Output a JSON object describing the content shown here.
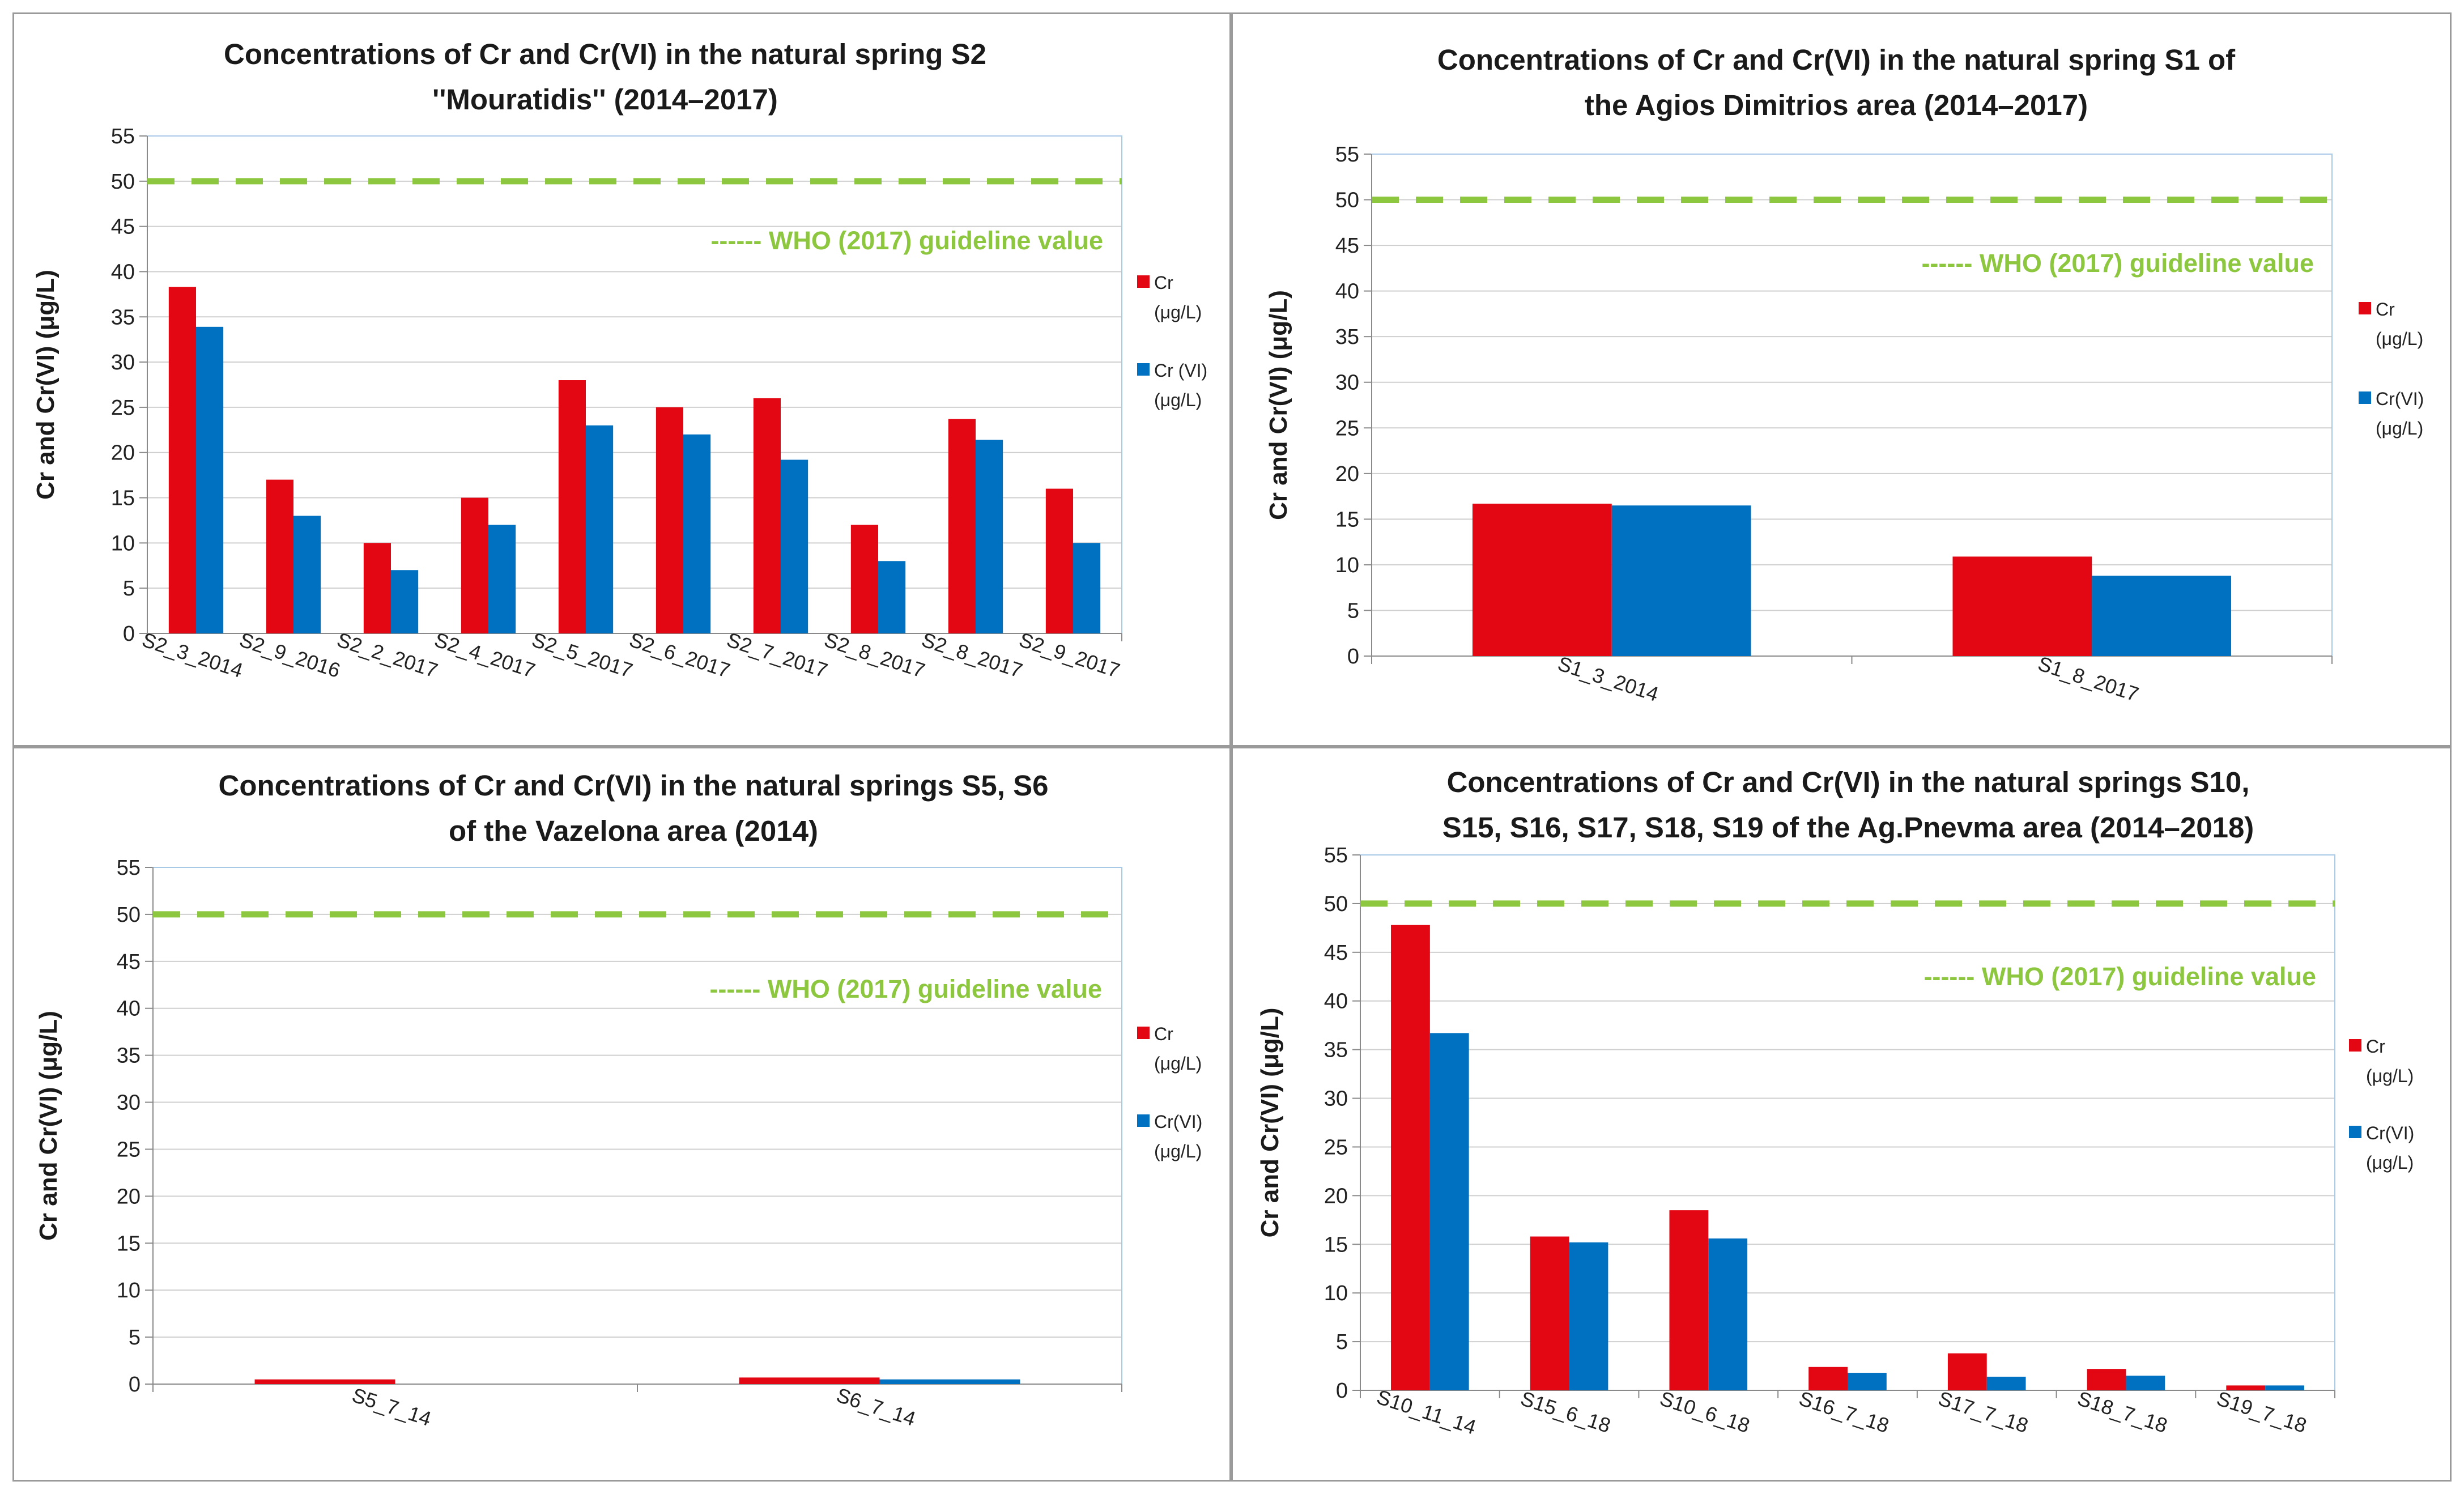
{
  "colors": {
    "cr": "#e30613",
    "crvi": "#0070c0",
    "who": "#8dc63f",
    "grid": "#cfcfcf",
    "frame": "#a8c8e8"
  },
  "chart_data": [
    {
      "type": "bar",
      "title": [
        "Concentrations  of  Cr and Cr(VI)  in the natural spring  S2",
        "''Mouratidis''  (2014–2017)"
      ],
      "ylabel": "Cr and Cr(VI) (μg/L)",
      "ylim": [
        0,
        55
      ],
      "yticks": [
        0,
        5,
        10,
        15,
        20,
        25,
        30,
        35,
        40,
        45,
        50,
        55
      ],
      "categories": [
        "S2_3_2014",
        "S2_9_2016",
        "S2_2_2017",
        "S2_4_2017",
        "S2_5_2017",
        "S2_6_2017",
        "S2_7_2017",
        "S2_8_2017",
        "S2_8_2017",
        "S2_9_2017"
      ],
      "series": [
        {
          "name": "Cr",
          "unit": "(μg/L)",
          "values": [
            38.3,
            17,
            10,
            15,
            28,
            25,
            26,
            12,
            23.7,
            16
          ]
        },
        {
          "name": "Cr (VI)",
          "unit": "(μg/L)",
          "values": [
            33.9,
            13,
            7,
            12,
            23,
            22,
            19.2,
            8,
            21.4,
            10
          ]
        }
      ],
      "guideline": {
        "value": 50,
        "label": "------ WHO (2017) guideline value"
      }
    },
    {
      "type": "bar",
      "title": [
        "Concentrations of Cr and Cr(VI)  in the natural spring  S1 of",
        "the Agios Dimitrios area (2014–2017)"
      ],
      "ylabel": "Cr and Cr(VI) (μg/L)",
      "ylim": [
        0,
        55
      ],
      "yticks": [
        0,
        5,
        10,
        15,
        20,
        25,
        30,
        35,
        40,
        45,
        50,
        55
      ],
      "categories": [
        "S1_3_2014",
        "S1_8_2017"
      ],
      "series": [
        {
          "name": "Cr",
          "unit": "(μg/L)",
          "values": [
            16.7,
            10.9
          ]
        },
        {
          "name": "Cr(VI)",
          "unit": "(μg/L)",
          "values": [
            16.5,
            8.8
          ]
        }
      ],
      "guideline": {
        "value": 50,
        "label": "------ WHO (2017) guideline value"
      }
    },
    {
      "type": "bar",
      "title": [
        "Concentrations of Cr and Cr(VI)  in the  natural springs S5, S6",
        "of the Vazelona area (2014)"
      ],
      "ylabel": "Cr and Cr(VI) (μg/L)",
      "ylim": [
        0,
        55
      ],
      "yticks": [
        0,
        5,
        10,
        15,
        20,
        25,
        30,
        35,
        40,
        45,
        50,
        55
      ],
      "categories": [
        "S5_7_14",
        "S6_7_14"
      ],
      "series": [
        {
          "name": "Cr",
          "unit": "(μg/L)",
          "values": [
            0.5,
            0.7
          ]
        },
        {
          "name": "Cr(VI)",
          "unit": "(μg/L)",
          "values": [
            0,
            0.5
          ]
        }
      ],
      "guideline": {
        "value": 50,
        "label": "------ WHO (2017) guideline value"
      }
    },
    {
      "type": "bar",
      "title": [
        "Concentrations  of Cr and Cr(VI)  in the natural springs S10,",
        "S15, S16, S17, S18, S19 of  the Ag.Pnevma area  (2014–2018)"
      ],
      "ylabel": "Cr and Cr(VI) (μg/L)",
      "ylim": [
        0,
        55
      ],
      "yticks": [
        0,
        5,
        10,
        15,
        20,
        25,
        30,
        35,
        40,
        45,
        50,
        55
      ],
      "categories": [
        "S10_11_14",
        "S15_6_18",
        "S10_6_18",
        "S16_7_18",
        "S17_7_18",
        "S18_7_18",
        "S19_7_18"
      ],
      "series": [
        {
          "name": "Cr",
          "unit": "(μg/L)",
          "values": [
            47.8,
            15.8,
            18.5,
            2.4,
            3.8,
            2.2,
            0.5
          ]
        },
        {
          "name": "Cr(VI)",
          "unit": "(μg/L)",
          "values": [
            36.7,
            15.2,
            15.6,
            1.8,
            1.4,
            1.5,
            0.5
          ]
        }
      ],
      "guideline": {
        "value": 50,
        "label": "------ WHO (2017) guideline value"
      }
    }
  ]
}
